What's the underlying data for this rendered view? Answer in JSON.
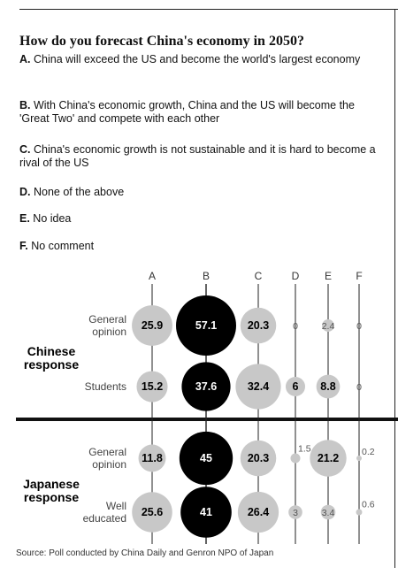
{
  "title": "How do you forecast China's economy in 2050?",
  "options": [
    {
      "letter": "A.",
      "text": "China will exceed the US and become the world's largest economy"
    },
    {
      "letter": "B.",
      "text": "With China's economic growth, China and the US will become the 'Great Two' and compete with each other"
    },
    {
      "letter": "C.",
      "text": "China's economic growth is not sustainable and it is hard to become a rival of the US"
    },
    {
      "letter": "D.",
      "text": "None of the above"
    },
    {
      "letter": "E.",
      "text": "No idea"
    },
    {
      "letter": "F.",
      "text": "No comment"
    }
  ],
  "source": "Source: Poll conducted by China Daily and Genron NPO of Japan",
  "chart_data": {
    "type": "bubble-matrix",
    "categories": [
      "A",
      "B",
      "C",
      "D",
      "E",
      "F"
    ],
    "groups": [
      {
        "name": "Chinese response",
        "rows": [
          {
            "label": "General opinion",
            "values": [
              25.9,
              57.1,
              20.3,
              0,
              2.4,
              0
            ]
          },
          {
            "label": "Students",
            "values": [
              15.2,
              37.6,
              32.4,
              6,
              8.8,
              0
            ]
          }
        ]
      },
      {
        "name": "Japanese response",
        "rows": [
          {
            "label": "General opinion",
            "values": [
              11.8,
              45,
              20.3,
              1.5,
              21.2,
              0.2
            ]
          },
          {
            "label": "Well educated",
            "values": [
              25.6,
              41,
              26.4,
              3,
              3.4,
              0.6
            ]
          }
        ]
      }
    ],
    "colors": {
      "highlight": "#000000",
      "other": "#c8c8c8"
    },
    "highlight_category": "B"
  }
}
